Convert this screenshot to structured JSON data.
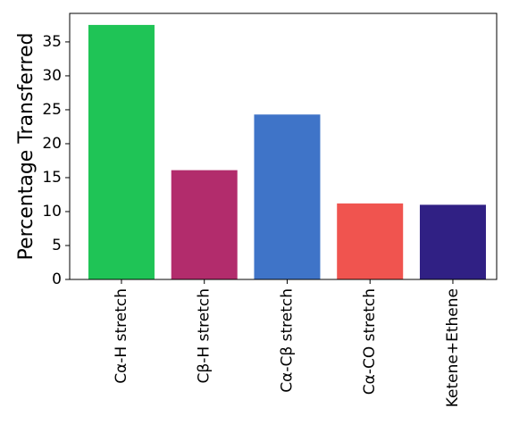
{
  "chart_data": {
    "type": "bar",
    "y_label": "Percentage Transferred",
    "categories": [
      "Cα-H stretch",
      "Cβ-H stretch",
      "Cα-Cβ stretch",
      "Cα-CO stretch",
      "Ketene+Ethene"
    ],
    "values": [
      37.5,
      16.1,
      24.3,
      11.2,
      11.0
    ],
    "colors": [
      "#1fc456",
      "#b22c6c",
      "#3f74c8",
      "#f0544f",
      "#302084"
    ],
    "ylim": [
      0,
      39.2
    ],
    "yticks": [
      0,
      5,
      10,
      15,
      20,
      25,
      30,
      35
    ]
  }
}
